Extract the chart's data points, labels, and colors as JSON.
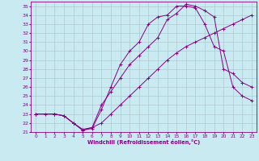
{
  "xlabel": "Windchill (Refroidissement éolien,°C)",
  "background_color": "#c8eaf0",
  "grid_color": "#b0c8d0",
  "line_color": "#880088",
  "xlim": [
    -0.5,
    23.5
  ],
  "ylim": [
    21,
    35.5
  ],
  "xticks": [
    0,
    1,
    2,
    3,
    4,
    5,
    6,
    7,
    8,
    9,
    10,
    11,
    12,
    13,
    14,
    15,
    16,
    17,
    18,
    19,
    20,
    21,
    22,
    23
  ],
  "yticks": [
    21,
    22,
    23,
    24,
    25,
    26,
    27,
    28,
    29,
    30,
    31,
    32,
    33,
    34,
    35
  ],
  "curve1_x": [
    0,
    1,
    2,
    3,
    4,
    5,
    6,
    7,
    8,
    9,
    10,
    11,
    12,
    13,
    14,
    15,
    16,
    17,
    18,
    19,
    20,
    21,
    22,
    23
  ],
  "curve1_y": [
    23.0,
    23.0,
    23.0,
    22.8,
    22.0,
    21.3,
    21.5,
    22.0,
    23.0,
    24.0,
    25.0,
    26.0,
    27.0,
    28.0,
    29.0,
    29.8,
    30.5,
    31.0,
    31.5,
    32.0,
    32.5,
    33.0,
    33.5,
    34.0
  ],
  "curve2_x": [
    0,
    2,
    3,
    4,
    5,
    6,
    7,
    8,
    9,
    10,
    11,
    12,
    13,
    14,
    15,
    16,
    17,
    18,
    19,
    20,
    21,
    22,
    23
  ],
  "curve2_y": [
    23.0,
    23.0,
    22.8,
    22.0,
    21.2,
    21.4,
    23.5,
    26.0,
    28.5,
    30.0,
    31.0,
    33.0,
    33.8,
    34.0,
    35.0,
    35.0,
    34.8,
    33.0,
    30.5,
    30.0,
    26.0,
    25.0,
    24.5
  ],
  "curve3_x": [
    0,
    2,
    3,
    4,
    5,
    6,
    7,
    8,
    9,
    10,
    11,
    12,
    13,
    14,
    15,
    16,
    17,
    18,
    19,
    20,
    21,
    22,
    23
  ],
  "curve3_y": [
    23.0,
    23.0,
    22.8,
    22.0,
    21.2,
    21.5,
    24.0,
    25.5,
    27.0,
    28.5,
    29.5,
    30.5,
    31.5,
    33.5,
    34.2,
    35.2,
    35.0,
    34.5,
    33.8,
    28.0,
    27.5,
    26.5,
    26.0
  ]
}
